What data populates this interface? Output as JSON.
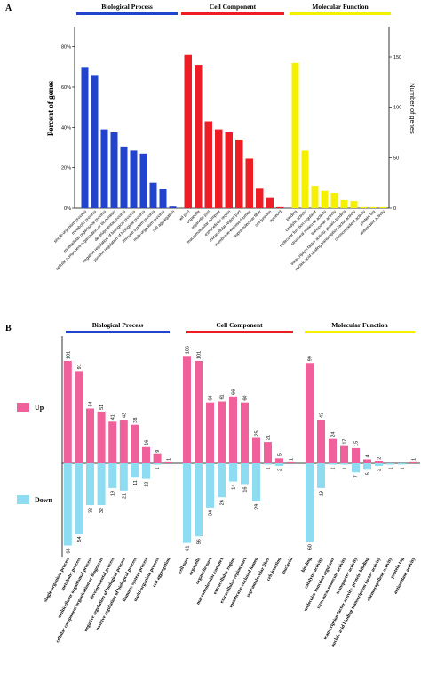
{
  "panels": {
    "a": {
      "letter": "A"
    },
    "b": {
      "letter": "B"
    }
  },
  "chart_data": [
    {
      "type": "bar",
      "panel": "A",
      "group_labels": [
        "Biological Process",
        "Cell Component",
        "Molecular Function"
      ],
      "group_colors": [
        "#2244cc",
        "#ee1c24",
        "#f5f000"
      ],
      "ylabel": "Percent of genes",
      "y2label": "Number of genes",
      "ylim": [
        0,
        90
      ],
      "y_ticks": [
        "0%",
        "20%",
        "40%",
        "60%",
        "80%"
      ],
      "y_tick_values": [
        0,
        20,
        40,
        60,
        80
      ],
      "y2lim": [
        0,
        180
      ],
      "y2_ticks": [
        "0",
        "50",
        "100",
        "150"
      ],
      "y2_tick_values": [
        0,
        50,
        100,
        150
      ],
      "groups": [
        {
          "name": "Biological Process",
          "color": "#2244cc",
          "categories": [
            "single-organism process",
            "metabolic process",
            "multicellular organismal process",
            "cellular component organization or biogenesis",
            "developmental process",
            "negative regulation of biological process",
            "positive regulation of biological process",
            "immune system process",
            "multi-organism process",
            "cell aggregation"
          ],
          "values": [
            70,
            66,
            39,
            37.5,
            30.5,
            28.5,
            27,
            12.5,
            9.5,
            0.8
          ]
        },
        {
          "name": "Cell Component",
          "color": "#ee1c24",
          "categories": [
            "cell part",
            "organelle",
            "organelle part",
            "macromolecular complex",
            "extracellular region",
            "extracellular region part",
            "membrane-enclosed lumen",
            "supramolecular fiber",
            "cell junction",
            "nucleoid"
          ],
          "values": [
            76,
            71,
            43,
            39,
            37.5,
            34,
            24.5,
            10,
            5,
            0.5
          ]
        },
        {
          "name": "Molecular Function",
          "color": "#f5f000",
          "categories": [
            "binding",
            "catalytic activity",
            "molecular function regulator",
            "structural molecule activity",
            "transporter activity",
            "transcription factor activity, protein binding",
            "nucleic acid binding transcription factor activity",
            "chemorepellent activity",
            "protein tag",
            "antioxidant activity"
          ],
          "values": [
            72,
            28.5,
            11,
            8.5,
            7.5,
            4,
            3.5,
            0.5,
            0.5,
            0.5
          ]
        }
      ]
    },
    {
      "type": "bar",
      "panel": "B",
      "group_labels": [
        "Biological Process",
        "Cell Component",
        "Molecular Function"
      ],
      "group_colors": [
        "#2244cc",
        "#ee1c24",
        "#f5f000"
      ],
      "legend": [
        {
          "name": "Up",
          "color": "#f0609a"
        },
        {
          "name": "Down",
          "color": "#8edcf2"
        }
      ],
      "ylim_up": [
        0,
        120
      ],
      "ylim_down": [
        0,
        70
      ],
      "groups": [
        {
          "name": "Biological Process",
          "categories": [
            "single-organism process",
            "metabolic process",
            "multicellular organismal process",
            "cellular component organization or biogenesis",
            "developmental process",
            "negative regulation of biological process",
            "positive regulation of biological process",
            "immune system process",
            "multi-organism process",
            "cell aggregation"
          ],
          "up": [
            101,
            91,
            54,
            51,
            41,
            43,
            38,
            16,
            9,
            1
          ],
          "down": [
            63,
            54,
            32,
            32,
            19,
            21,
            11,
            12,
            1,
            null
          ]
        },
        {
          "name": "Cell Component",
          "categories": [
            "cell part",
            "organelle",
            "organelle part",
            "macromolecular complex",
            "extracellular region",
            "extracellular region part",
            "membrane-enclosed lumen",
            "supramolecular fiber",
            "cell junction",
            "nucleoid"
          ],
          "up": [
            106,
            101,
            60,
            61,
            66,
            60,
            25,
            21,
            5,
            1
          ],
          "down": [
            61,
            56,
            34,
            26,
            14,
            16,
            29,
            1,
            2,
            null
          ]
        },
        {
          "name": "Molecular Function",
          "categories": [
            "binding",
            "catalytic activity",
            "molecular function regulator",
            "structural molecule activity",
            "transporter activity",
            "transcription factor activity, protein binding",
            "nucleic acid binding transcription factor activity",
            "chemorepellent activity",
            "protein tag",
            "antioxidant activity"
          ],
          "up": [
            99,
            43,
            24,
            17,
            15,
            4,
            2,
            null,
            null,
            1
          ],
          "down": [
            60,
            19,
            1,
            1,
            7,
            5,
            2,
            1,
            1,
            null
          ]
        }
      ]
    }
  ]
}
